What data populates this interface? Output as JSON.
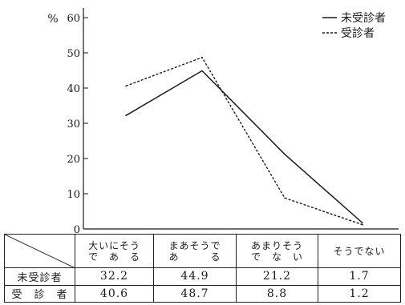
{
  "chart_data": {
    "type": "line",
    "title": "",
    "ylabel": "%",
    "ylim": [
      0,
      60
    ],
    "yticks": [
      0,
      10,
      20,
      30,
      40,
      50,
      60
    ],
    "categories": [
      [
        "大いにそう",
        "で　あ　る"
      ],
      [
        "まあそうで",
        "あ　　　る"
      ],
      [
        "あまりそう",
        "で　な　い"
      ],
      [
        "そうでない"
      ]
    ],
    "series": [
      {
        "name": "未受診者",
        "style": "solid",
        "values": [
          32.2,
          44.9,
          21.2,
          1.7
        ]
      },
      {
        "name": "受診者",
        "style": "dashed",
        "values": [
          40.6,
          48.7,
          8.8,
          1.2
        ]
      }
    ],
    "value_labels": [
      [
        "32.2",
        "44.9",
        "21.2",
        "1.7"
      ],
      [
        "40.6",
        "48.7",
        "8.8",
        "1.2"
      ]
    ],
    "row_labels": [
      "未受診者",
      "受　診　者"
    ],
    "legend": "top-right",
    "grid": false
  }
}
